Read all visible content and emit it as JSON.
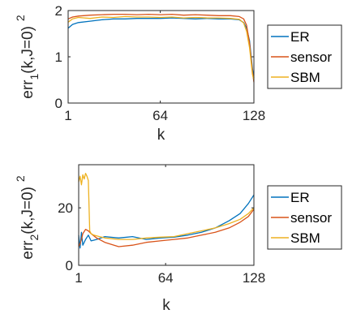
{
  "chart_data": [
    {
      "type": "line",
      "xlabel": "k",
      "ylabel": "err",
      "ylabel_sub": "1",
      "ylabel_arg": "(k,J=0)",
      "ylabel_sup": "2",
      "xlim": [
        1,
        128
      ],
      "ylim": [
        0,
        2
      ],
      "xticks": [
        1,
        64,
        128
      ],
      "yticks": [
        0,
        1,
        2
      ],
      "legend_position": "right",
      "series": [
        {
          "name": "ER",
          "color": "#0072BD",
          "x": [
            1,
            4,
            8,
            16,
            24,
            32,
            40,
            48,
            56,
            64,
            72,
            80,
            88,
            96,
            104,
            112,
            118,
            121,
            123,
            125,
            127,
            128
          ],
          "y": [
            1.62,
            1.7,
            1.74,
            1.77,
            1.8,
            1.82,
            1.82,
            1.83,
            1.83,
            1.83,
            1.84,
            1.83,
            1.82,
            1.83,
            1.82,
            1.82,
            1.8,
            1.74,
            1.62,
            1.35,
            0.75,
            0.55
          ]
        },
        {
          "name": "sensor",
          "color": "#D95319",
          "x": [
            1,
            4,
            8,
            16,
            24,
            32,
            40,
            48,
            56,
            64,
            72,
            80,
            88,
            96,
            104,
            112,
            118,
            121,
            123,
            125,
            127,
            128
          ],
          "y": [
            1.82,
            1.86,
            1.88,
            1.9,
            1.91,
            1.92,
            1.92,
            1.91,
            1.92,
            1.91,
            1.92,
            1.9,
            1.91,
            1.9,
            1.89,
            1.89,
            1.87,
            1.82,
            1.68,
            1.3,
            0.68,
            0.45
          ]
        },
        {
          "name": "SBM",
          "color": "#EDB120",
          "x": [
            1,
            4,
            8,
            16,
            24,
            32,
            40,
            48,
            56,
            64,
            72,
            80,
            88,
            96,
            104,
            112,
            118,
            121,
            123,
            125,
            127,
            128
          ],
          "y": [
            1.75,
            1.82,
            1.85,
            1.83,
            1.86,
            1.85,
            1.87,
            1.86,
            1.86,
            1.85,
            1.86,
            1.84,
            1.85,
            1.84,
            1.84,
            1.83,
            1.81,
            1.73,
            1.55,
            1.2,
            0.62,
            0.5
          ]
        }
      ]
    },
    {
      "type": "line",
      "xlabel": "k",
      "ylabel": "err",
      "ylabel_sub": "2",
      "ylabel_arg": "(k,J=0)",
      "ylabel_sup": "2",
      "xlim": [
        1,
        128
      ],
      "ylim": [
        0,
        35
      ],
      "xticks": [
        1,
        64,
        128
      ],
      "yticks": [
        0,
        20
      ],
      "legend_position": "right",
      "series": [
        {
          "name": "ER",
          "color": "#0072BD",
          "x": [
            1,
            2,
            3,
            4,
            6,
            8,
            10,
            14,
            20,
            30,
            40,
            50,
            60,
            70,
            80,
            90,
            100,
            110,
            118,
            124,
            128
          ],
          "y": [
            10.5,
            6.0,
            11.5,
            7.0,
            9.0,
            10.5,
            8.5,
            9.0,
            10.0,
            9.5,
            10.0,
            9.0,
            9.5,
            9.8,
            10.5,
            11.5,
            13.0,
            15.5,
            18.0,
            21.5,
            24.5
          ]
        },
        {
          "name": "sensor",
          "color": "#D95319",
          "x": [
            1,
            2,
            3,
            4,
            6,
            8,
            10,
            14,
            20,
            30,
            40,
            50,
            60,
            70,
            80,
            90,
            100,
            110,
            118,
            124,
            128
          ],
          "y": [
            6.5,
            7.5,
            9.0,
            11.0,
            12.5,
            12.0,
            11.0,
            9.5,
            8.0,
            6.5,
            7.0,
            8.0,
            8.5,
            9.0,
            9.5,
            10.5,
            11.5,
            13.0,
            15.0,
            17.0,
            19.5
          ]
        },
        {
          "name": "SBM",
          "color": "#EDB120",
          "x": [
            1,
            2,
            3,
            4,
            5,
            6,
            7,
            8,
            9,
            10,
            12,
            16,
            20,
            30,
            40,
            50,
            60,
            70,
            80,
            90,
            100,
            110,
            118,
            124,
            128
          ],
          "y": [
            29.0,
            31.0,
            28.0,
            31.5,
            30.0,
            32.0,
            31.0,
            29.5,
            12.0,
            11.0,
            10.5,
            10.0,
            9.5,
            9.0,
            9.0,
            9.5,
            9.8,
            10.0,
            11.0,
            12.0,
            13.0,
            14.5,
            16.0,
            18.0,
            20.0
          ]
        }
      ]
    }
  ]
}
